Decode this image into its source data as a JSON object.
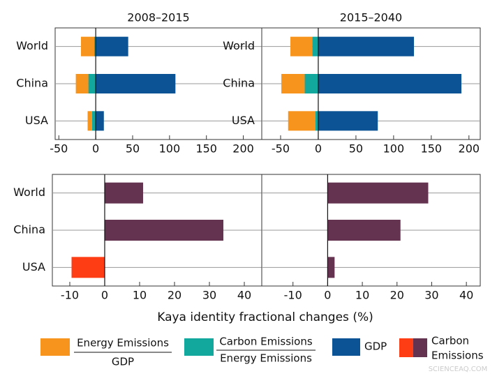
{
  "chart_data": [
    {
      "type": "bar",
      "orientation": "horizontal",
      "stacked": true,
      "title": "2008–2015",
      "categories": [
        "World",
        "China",
        "USA"
      ],
      "series": [
        {
          "color": "#13a89e",
          "values": [
            -2,
            -10,
            -5
          ]
        },
        {
          "color": "#f7941d",
          "values": [
            -18,
            -17,
            -6
          ]
        },
        {
          "color": "#0b5394",
          "values": [
            44,
            108,
            11
          ]
        }
      ],
      "xlim": [
        -55,
        225
      ],
      "xticks": [
        -50,
        0,
        50,
        100,
        150,
        200
      ],
      "grid": true
    },
    {
      "type": "bar",
      "orientation": "horizontal",
      "stacked": true,
      "title": "2015–2040",
      "categories": [
        "World",
        "China",
        "USA"
      ],
      "series": [
        {
          "color": "#13a89e",
          "values": [
            -8,
            -18,
            -4
          ]
        },
        {
          "color": "#f7941d",
          "values": [
            -29,
            -31,
            -36
          ]
        },
        {
          "color": "#0b5394",
          "values": [
            127,
            190,
            79
          ]
        }
      ],
      "xlim": [
        -75,
        215
      ],
      "xticks": [
        -50,
        0,
        50,
        100,
        150,
        200
      ],
      "grid": true
    },
    {
      "type": "bar",
      "orientation": "horizontal",
      "categories": [
        "World",
        "China",
        "USA"
      ],
      "series": [
        {
          "colors": [
            "#64334f",
            "#64334f",
            "#ff3d14"
          ],
          "values": [
            11,
            34,
            -9.5
          ]
        }
      ],
      "xlim": [
        -15,
        45
      ],
      "xticks": [
        -10,
        0,
        10,
        20,
        30,
        40
      ],
      "grid": true
    },
    {
      "type": "bar",
      "orientation": "horizontal",
      "series": [
        {
          "colors": [
            "#64334f",
            "#64334f",
            "#64334f"
          ],
          "values": [
            29,
            21,
            2
          ]
        }
      ],
      "xlim": [
        -19,
        44
      ],
      "xticks": [
        -10,
        0,
        10,
        20,
        30,
        40
      ],
      "grid": true
    }
  ],
  "figure": {
    "xlabel": "Kaya identity fractional changes (%)",
    "legend": [
      {
        "color": "#f7941d",
        "numerator": "Energy Emissions",
        "denominator": "GDP"
      },
      {
        "color": "#13a89e",
        "numerator": "Carbon Emissions",
        "denominator": "Energy Emissions"
      },
      {
        "color": "#0b5394",
        "label": "GDP"
      },
      {
        "colors": [
          "#ff3d14",
          "#64334f"
        ],
        "lines": [
          "Carbon",
          "Emissions"
        ]
      }
    ],
    "watermark": "SCIENCEAQ.COM"
  }
}
